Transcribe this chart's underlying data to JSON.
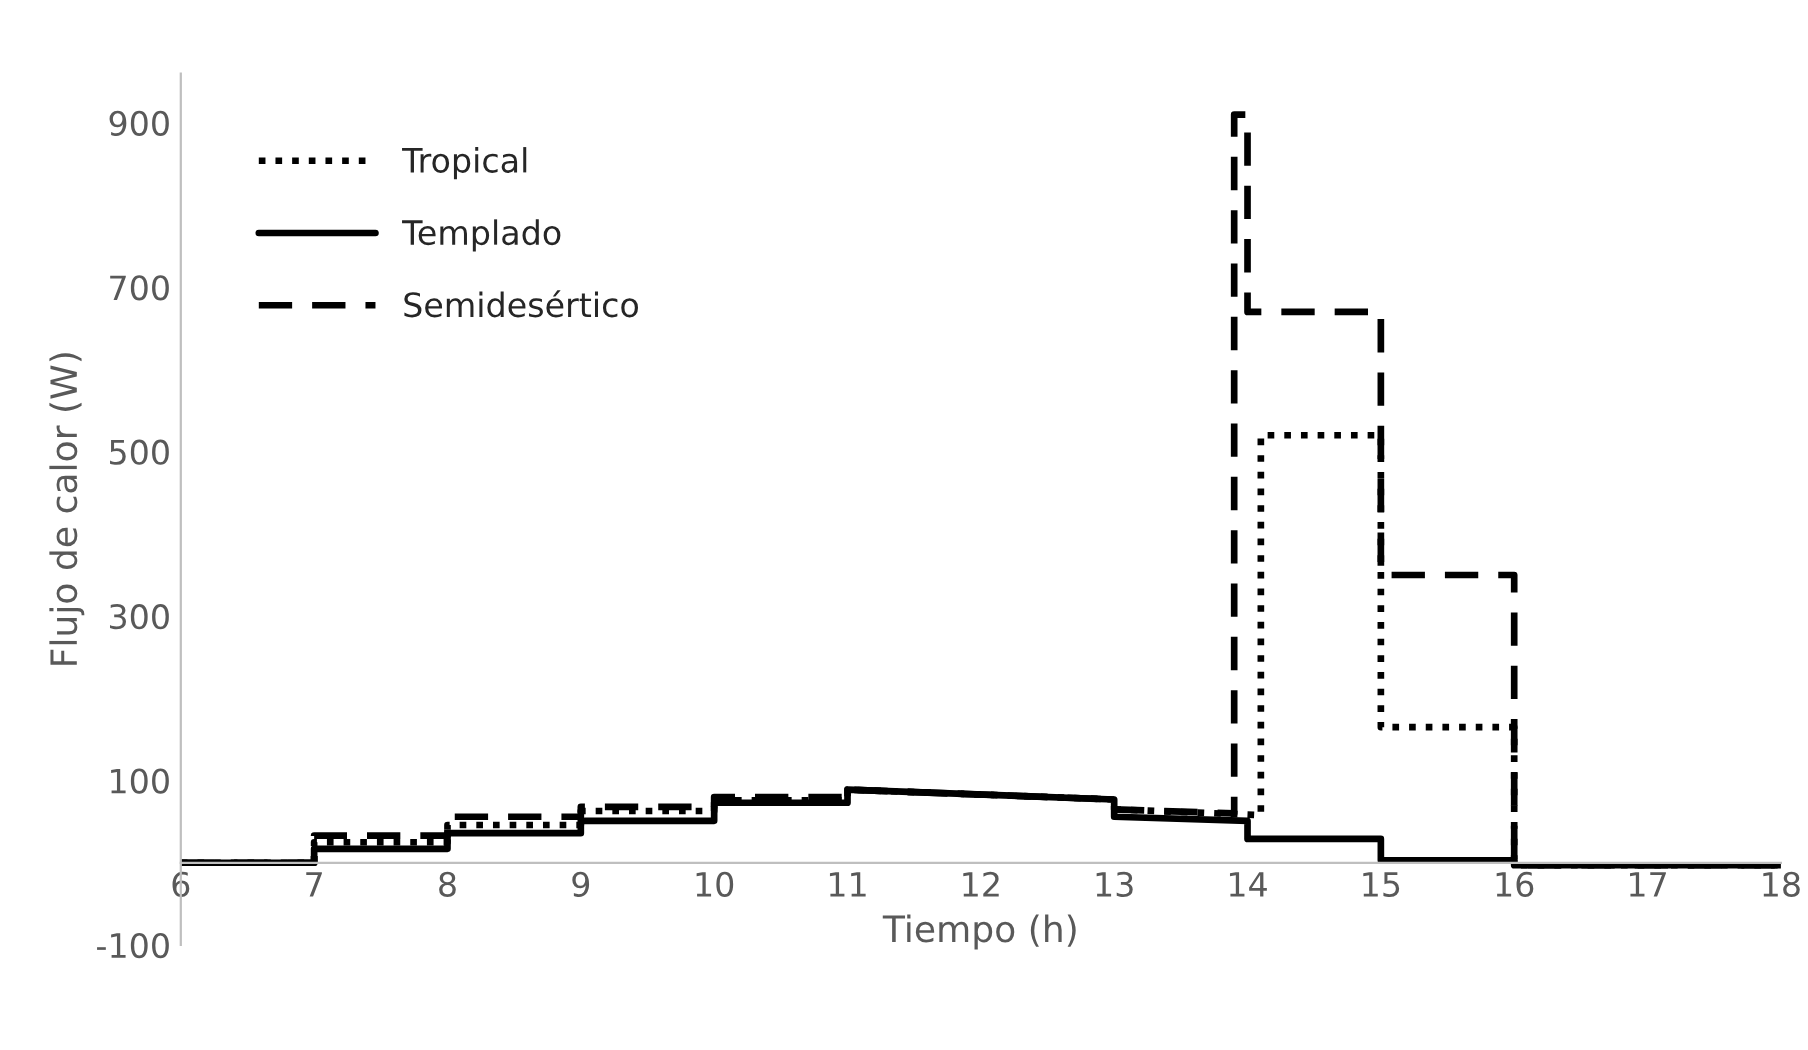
{
  "chart_data": {
    "type": "line",
    "xlabel": "Tiempo (h)",
    "ylabel": "Flujo de calor (W)",
    "xlim": [
      6,
      18
    ],
    "xticks": [
      6,
      7,
      8,
      9,
      10,
      11,
      12,
      13,
      14,
      15,
      16,
      17,
      18
    ],
    "ylim": [
      -100,
      960
    ],
    "yticks": [
      -100,
      100,
      300,
      500,
      700,
      900
    ],
    "grid": false,
    "legend": "top left",
    "marker": "none",
    "series": [
      {
        "name": "Tropical",
        "color": "#000000",
        "line_style": "dotted",
        "x": [
          6,
          7,
          7,
          8,
          8,
          9,
          9,
          10,
          10,
          11,
          11,
          13,
          13,
          14.1,
          14.1,
          15,
          15,
          16,
          16,
          18
        ],
        "values": [
          0,
          0,
          25,
          25,
          46,
          46,
          63,
          63,
          76,
          76,
          89,
          77,
          65,
          58,
          520,
          520,
          165,
          165,
          -3,
          -3
        ]
      },
      {
        "name": "Templado",
        "color": "#000000",
        "line_style": "solid",
        "x": [
          6,
          7,
          7,
          8,
          8,
          9,
          9,
          10,
          10,
          11,
          11,
          13,
          13,
          14,
          14,
          15,
          15,
          16,
          16,
          18
        ],
        "values": [
          0,
          0,
          17,
          17,
          36,
          36,
          51,
          51,
          73,
          73,
          89,
          77,
          56,
          51,
          29,
          29,
          3,
          3,
          -3,
          -3
        ]
      },
      {
        "name": "Semidesértico",
        "color": "#000000",
        "line_style": "dashed",
        "x": [
          6,
          7,
          7,
          8,
          8,
          9,
          9,
          10,
          10,
          11,
          11,
          13,
          13,
          13.9,
          13.9,
          14,
          14,
          15,
          15,
          16,
          16,
          18
        ],
        "values": [
          0,
          0,
          33,
          33,
          56,
          56,
          68,
          68,
          80,
          80,
          89,
          77,
          65,
          60,
          910,
          910,
          670,
          670,
          350,
          350,
          -3,
          -3
        ]
      }
    ]
  }
}
